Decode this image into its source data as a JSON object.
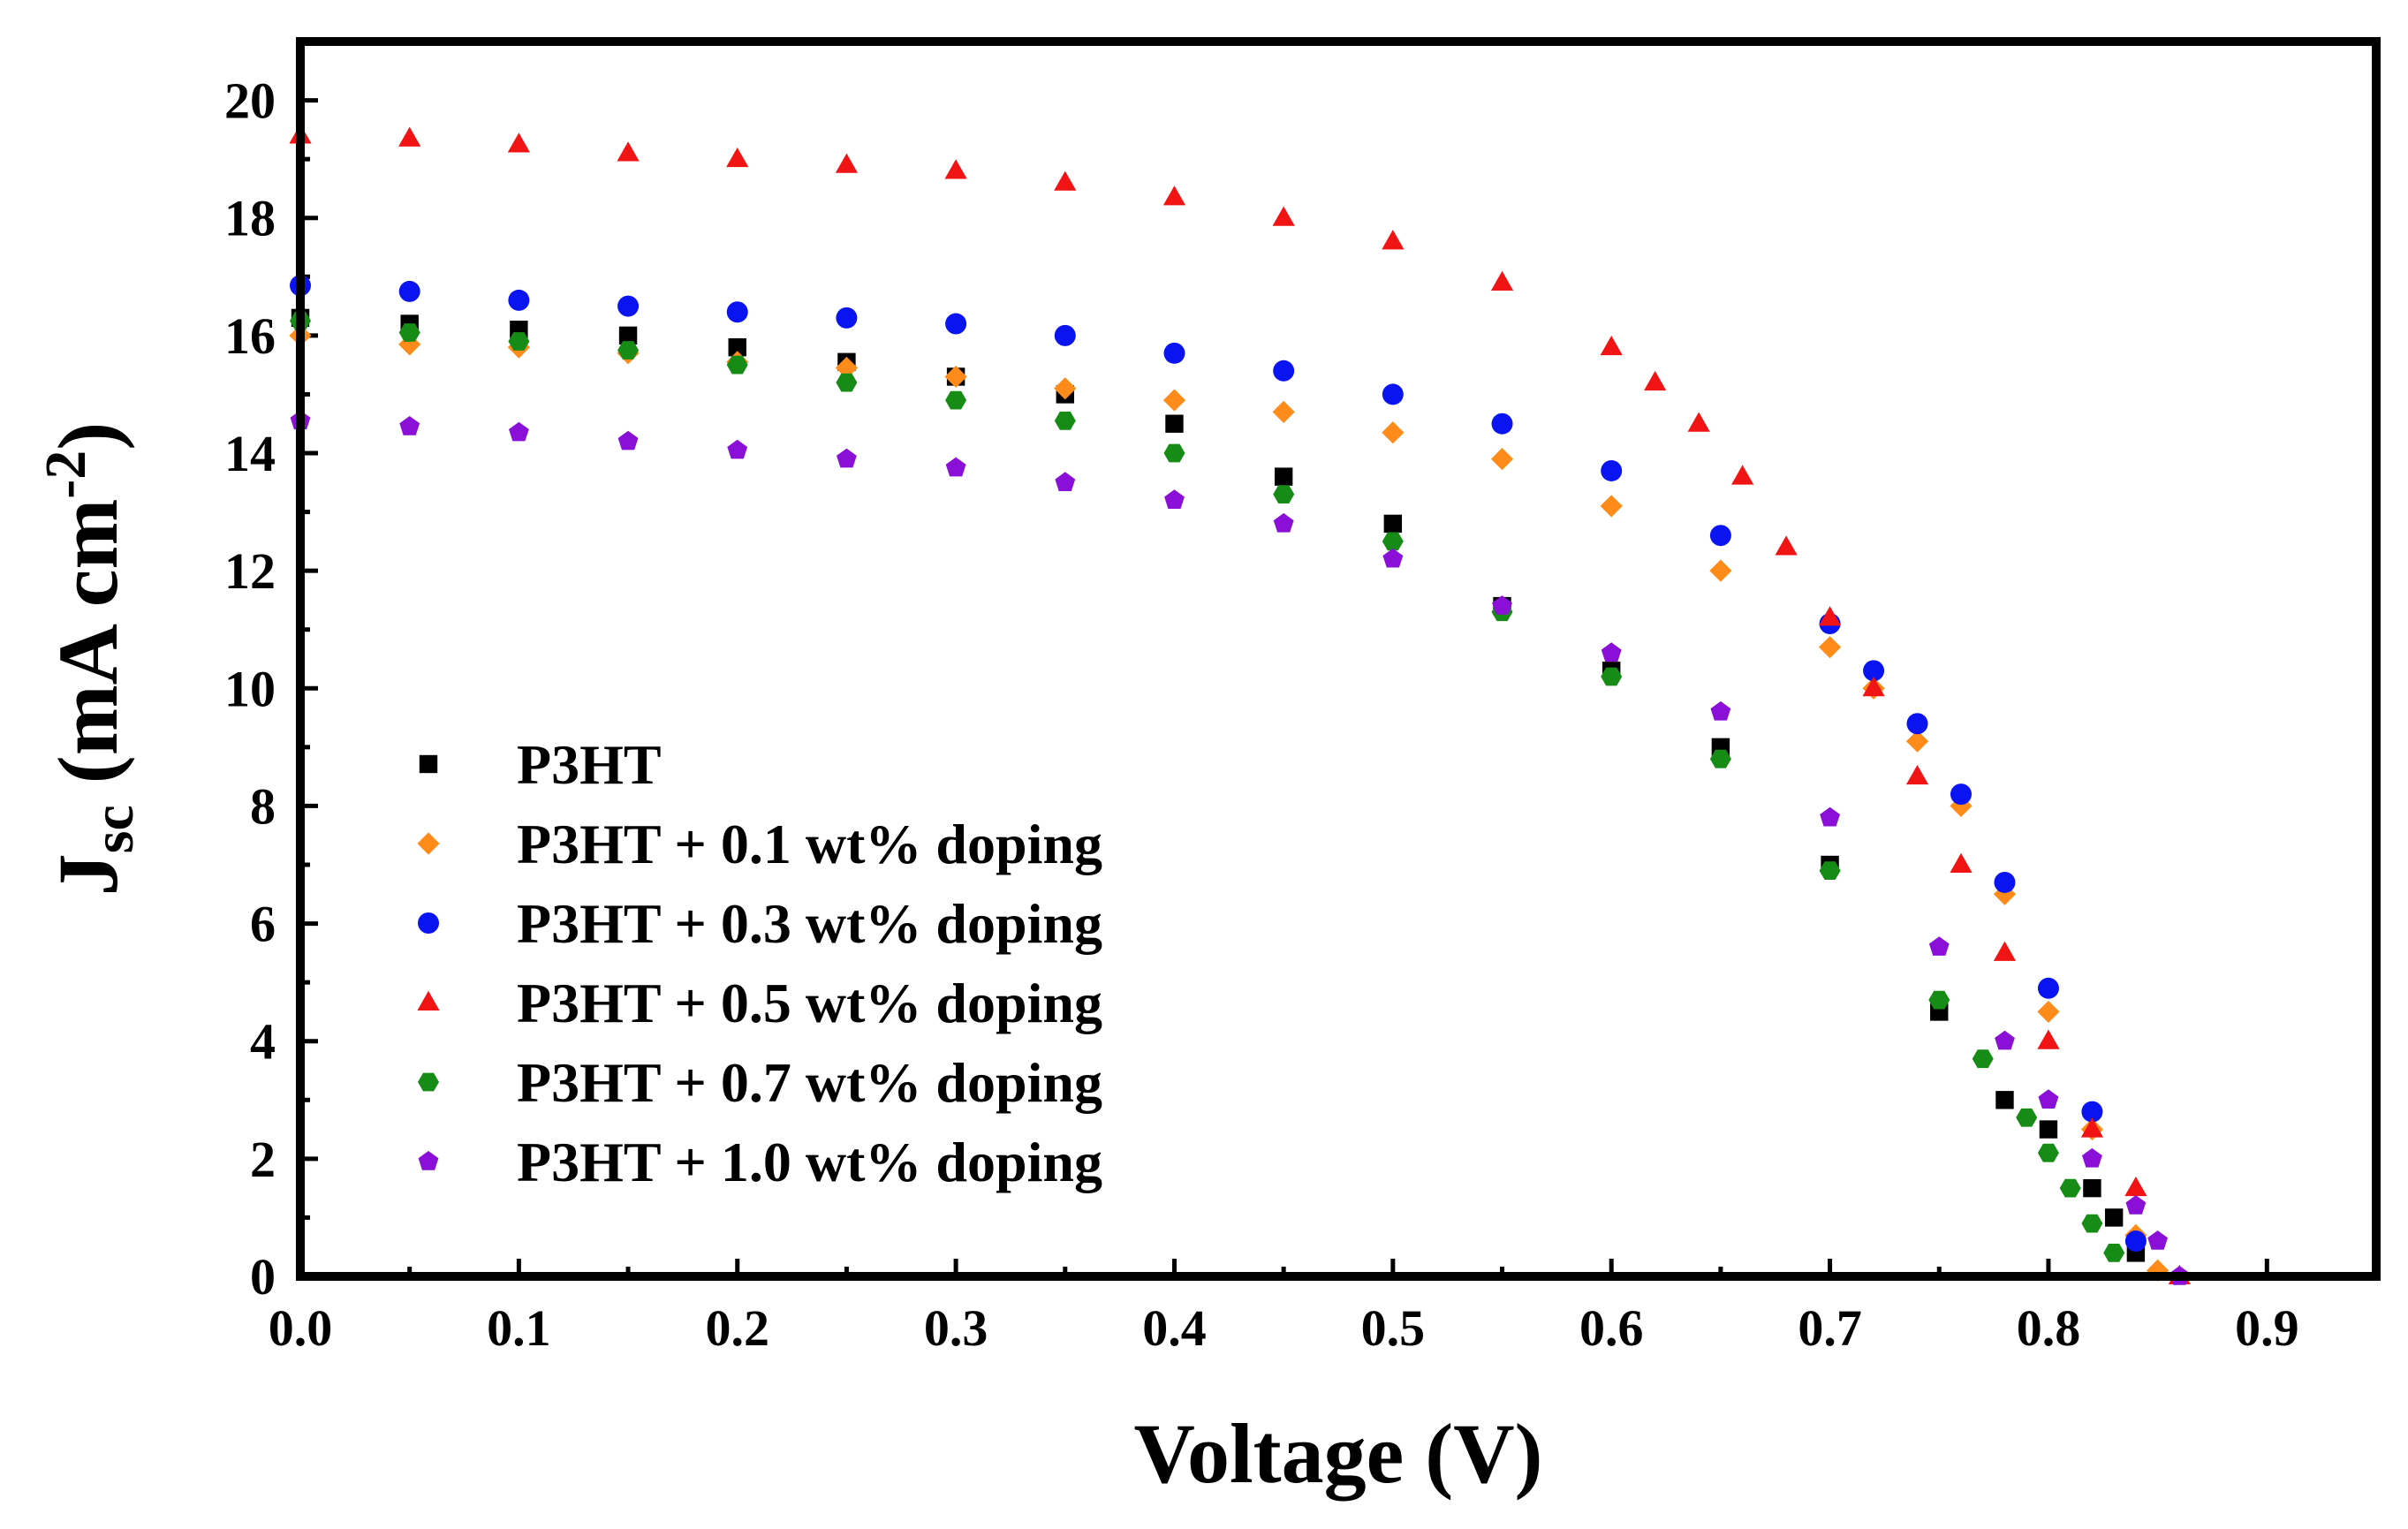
{
  "chart_data": {
    "type": "scatter",
    "title": "",
    "xlabel": "Voltage (V)",
    "ylabel_main": "J",
    "ylabel_sub": "sc",
    "ylabel_rest": " (mA cm",
    "ylabel_sup": "-2",
    "ylabel_close": ")",
    "xlim": [
      0,
      0.95
    ],
    "ylim": [
      0,
      21
    ],
    "xticks": [
      0.0,
      0.1,
      0.2,
      0.3,
      0.4,
      0.5,
      0.6,
      0.7,
      0.8,
      0.9
    ],
    "xtick_labels": [
      "0.0",
      "0.1",
      "0.2",
      "0.3",
      "0.4",
      "0.5",
      "0.6",
      "0.7",
      "0.8",
      "0.9"
    ],
    "yticks": [
      0,
      2,
      4,
      6,
      8,
      10,
      12,
      14,
      16,
      18,
      20
    ],
    "ytick_labels": [
      "0",
      "2",
      "4",
      "6",
      "8",
      "10",
      "12",
      "14",
      "16",
      "18",
      "20"
    ],
    "legend_position": "lower-left",
    "series": [
      {
        "name": "P3HT",
        "marker": "square",
        "color": "#000000",
        "x": [
          0.0,
          0.05,
          0.1,
          0.15,
          0.2,
          0.25,
          0.3,
          0.35,
          0.4,
          0.45,
          0.5,
          0.55,
          0.6,
          0.65,
          0.7,
          0.75,
          0.78,
          0.8,
          0.82,
          0.83,
          0.84
        ],
        "y": [
          16.3,
          16.2,
          16.1,
          16.0,
          15.8,
          15.55,
          15.3,
          15.0,
          14.5,
          13.6,
          12.8,
          11.4,
          10.3,
          9.0,
          7.0,
          4.5,
          3.0,
          2.5,
          1.5,
          1.0,
          0.4
        ]
      },
      {
        "name": "P3HT + 0.1 wt% doping",
        "marker": "diamond",
        "color": "#FF8C1A",
        "x": [
          0.0,
          0.05,
          0.1,
          0.15,
          0.2,
          0.25,
          0.3,
          0.35,
          0.4,
          0.45,
          0.5,
          0.55,
          0.6,
          0.65,
          0.7,
          0.72,
          0.74,
          0.76,
          0.78,
          0.8,
          0.82,
          0.84,
          0.85
        ],
        "y": [
          16.0,
          15.85,
          15.8,
          15.7,
          15.55,
          15.45,
          15.3,
          15.1,
          14.9,
          14.7,
          14.35,
          13.9,
          13.1,
          12.0,
          10.7,
          10.0,
          9.1,
          8.0,
          6.5,
          4.5,
          2.5,
          0.7,
          0.1
        ]
      },
      {
        "name": "P3HT + 0.3 wt% doping",
        "marker": "circle",
        "color": "#0A14F0",
        "x": [
          0.0,
          0.05,
          0.1,
          0.15,
          0.2,
          0.25,
          0.3,
          0.35,
          0.4,
          0.45,
          0.5,
          0.55,
          0.6,
          0.65,
          0.7,
          0.72,
          0.74,
          0.76,
          0.78,
          0.8,
          0.82,
          0.84
        ],
        "y": [
          16.85,
          16.75,
          16.6,
          16.5,
          16.4,
          16.3,
          16.2,
          16.0,
          15.7,
          15.4,
          15.0,
          14.5,
          13.7,
          12.6,
          11.1,
          10.3,
          9.4,
          8.2,
          6.7,
          4.9,
          2.8,
          0.6
        ]
      },
      {
        "name": "P3HT + 0.5 wt% doping",
        "marker": "triangle",
        "color": "#F01414",
        "x": [
          0.0,
          0.05,
          0.1,
          0.15,
          0.2,
          0.25,
          0.3,
          0.35,
          0.4,
          0.45,
          0.5,
          0.55,
          0.6,
          0.62,
          0.64,
          0.66,
          0.68,
          0.7,
          0.72,
          0.74,
          0.76,
          0.78,
          0.8,
          0.82,
          0.84,
          0.86
        ],
        "y": [
          19.4,
          19.35,
          19.25,
          19.1,
          19.0,
          18.9,
          18.8,
          18.6,
          18.35,
          18.0,
          17.6,
          16.9,
          15.8,
          15.2,
          14.5,
          13.6,
          12.4,
          11.2,
          10.0,
          8.5,
          7.0,
          5.5,
          4.0,
          2.5,
          1.5,
          0.0
        ]
      },
      {
        "name": "P3HT + 0.7 wt% doping",
        "marker": "hexagon",
        "color": "#168C16",
        "x": [
          0.0,
          0.05,
          0.1,
          0.15,
          0.2,
          0.25,
          0.3,
          0.35,
          0.4,
          0.45,
          0.5,
          0.55,
          0.6,
          0.65,
          0.7,
          0.75,
          0.77,
          0.79,
          0.8,
          0.81,
          0.82,
          0.83
        ],
        "y": [
          16.25,
          16.05,
          15.9,
          15.75,
          15.5,
          15.2,
          14.9,
          14.55,
          14.0,
          13.3,
          12.5,
          11.3,
          10.2,
          8.8,
          6.9,
          4.7,
          3.7,
          2.7,
          2.1,
          1.5,
          0.9,
          0.4
        ]
      },
      {
        "name": "P3HT + 1.0 wt% doping",
        "marker": "pentagon",
        "color": "#8A10D8",
        "x": [
          0.0,
          0.05,
          0.1,
          0.15,
          0.2,
          0.25,
          0.3,
          0.35,
          0.4,
          0.45,
          0.5,
          0.55,
          0.6,
          0.65,
          0.7,
          0.75,
          0.78,
          0.8,
          0.82,
          0.84,
          0.85,
          0.86
        ],
        "y": [
          14.55,
          14.45,
          14.35,
          14.2,
          14.05,
          13.9,
          13.75,
          13.5,
          13.2,
          12.8,
          12.2,
          11.4,
          10.6,
          9.6,
          7.8,
          5.6,
          4.0,
          3.0,
          2.0,
          1.2,
          0.6,
          0.0
        ]
      }
    ]
  }
}
